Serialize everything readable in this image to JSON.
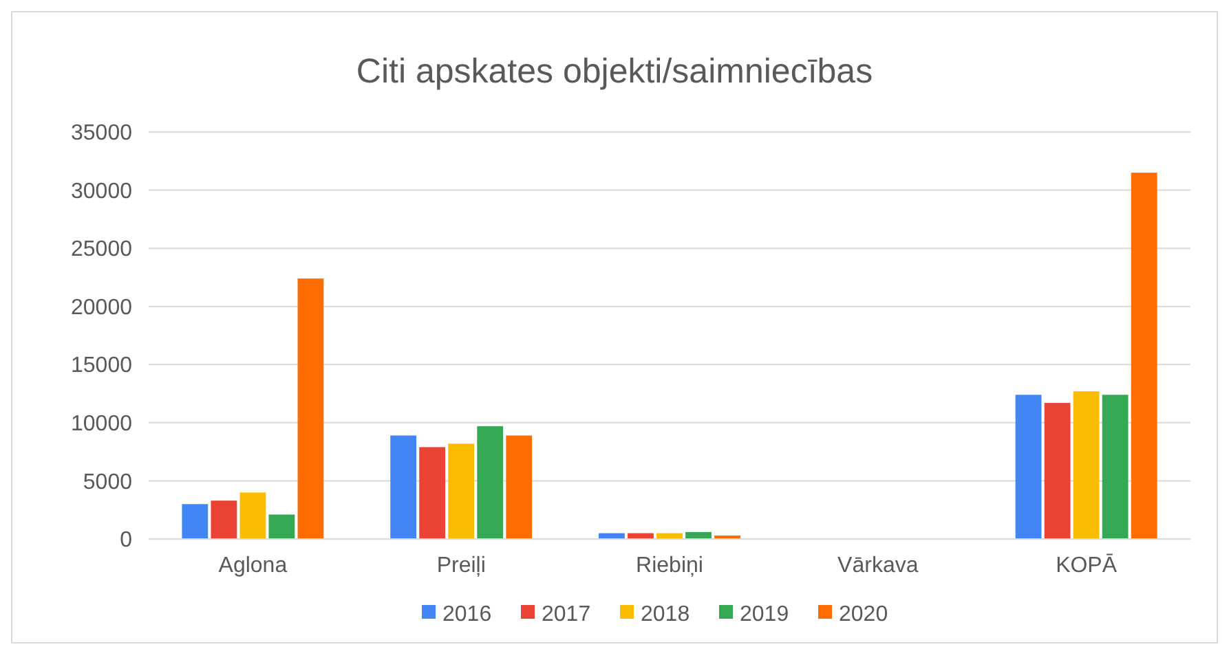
{
  "chart_data": {
    "type": "bar",
    "title": "Citi apskates objekti/saimniecības",
    "categories": [
      "Aglona",
      "Preiļi",
      "Riebiņi",
      "Vārkava",
      "KOPĀ"
    ],
    "series": [
      {
        "name": "2016",
        "color": "#4285f4",
        "values": [
          3000,
          8900,
          500,
          0,
          12400
        ]
      },
      {
        "name": "2017",
        "color": "#ea4335",
        "values": [
          3300,
          7900,
          500,
          0,
          11700
        ]
      },
      {
        "name": "2018",
        "color": "#fbbc04",
        "values": [
          4000,
          8200,
          500,
          0,
          12700
        ]
      },
      {
        "name": "2019",
        "color": "#34a853",
        "values": [
          2100,
          9700,
          600,
          0,
          12400
        ]
      },
      {
        "name": "2020",
        "color": "#ff6d01",
        "values": [
          22400,
          8900,
          300,
          0,
          31500
        ]
      }
    ],
    "ylim": [
      0,
      35000
    ],
    "yticks": [
      0,
      5000,
      10000,
      15000,
      20000,
      25000,
      30000,
      35000
    ],
    "grid": "y",
    "legend": "bottom"
  }
}
